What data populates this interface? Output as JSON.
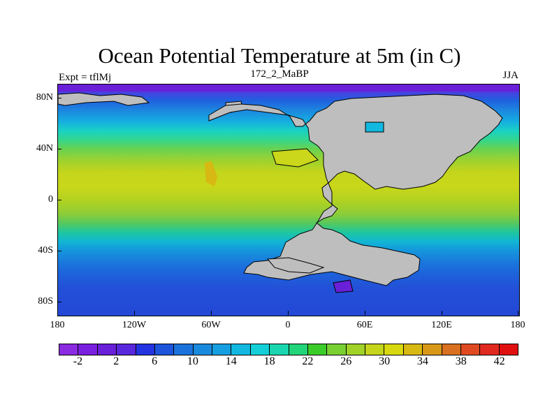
{
  "header": {
    "title": "Ocean Potential Temperature at 5m (in C)",
    "left": "Expt = tflMj",
    "center": "172_2_MaBP",
    "right": "JJA"
  },
  "axes": {
    "y_ticks": [
      "80N",
      "40N",
      "0",
      "40S",
      "80S"
    ],
    "x_ticks": [
      "180",
      "120W",
      "60W",
      "0",
      "60E",
      "120E",
      "180"
    ]
  },
  "colorbar": {
    "labels": [
      "-2",
      "2",
      "6",
      "10",
      "14",
      "18",
      "22",
      "26",
      "30",
      "34",
      "38",
      "42"
    ],
    "colors": [
      "#8a2be2",
      "#7a1fe0",
      "#6a1fd8",
      "#5a28dc",
      "#2434e0",
      "#1c55dc",
      "#1b72dc",
      "#1a8ade",
      "#159fe0",
      "#12b8e0",
      "#14cfd8",
      "#19d6b0",
      "#22d47a",
      "#3ccc2a",
      "#78d032",
      "#a0d228",
      "#c4d51c",
      "#d8d810",
      "#d8b812",
      "#d89818",
      "#d87020",
      "#e04a22",
      "#e02a20",
      "#e01010"
    ]
  },
  "chart_data": {
    "type": "heatmap",
    "title": "Ocean Potential Temperature at 5m (in C)",
    "subtitle_left": "Expt = tflMj",
    "subtitle_center": "172_2_MaBP",
    "subtitle_right": "JJA",
    "xlabel": "",
    "ylabel": "",
    "xlim": [
      -180,
      180
    ],
    "ylim": [
      -90,
      90
    ],
    "x_ticks": [
      "180",
      "120W",
      "60W",
      "0",
      "60E",
      "120E",
      "180"
    ],
    "y_ticks": [
      "80N",
      "40N",
      "0",
      "40S",
      "80S"
    ],
    "color_levels": [
      -2,
      2,
      6,
      10,
      14,
      18,
      22,
      26,
      30,
      34,
      38,
      42
    ],
    "legend_position": "bottom"
  }
}
